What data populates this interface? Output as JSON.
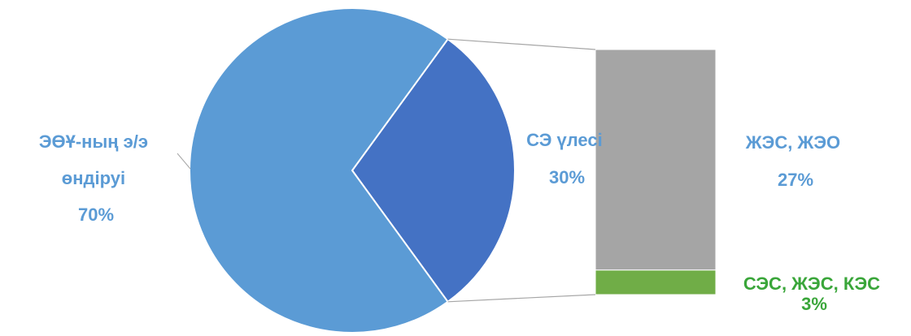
{
  "chart_data": {
    "type": "pie",
    "subtype": "pie-of-pie (bar of pie)",
    "title": "",
    "slices": [
      {
        "label_lines": [
          "ЭӨҰ-ның э/э",
          "өндіруі"
        ],
        "value": 70,
        "value_label": "70%",
        "color": "#5b9bd5",
        "label_color": "#5b9bd5"
      },
      {
        "label_lines": [
          "СЭ үлесі"
        ],
        "value": 30,
        "value_label": "30%",
        "color": "#4472c4",
        "label_color": "#5b9bd5",
        "exploded_into_bar": true
      }
    ],
    "bar_breakdown": [
      {
        "label": "ЖЭС, ЖЭО",
        "value": 27,
        "value_label": "27%",
        "color": "#a5a5a5",
        "label_color": "#5b9bd5"
      },
      {
        "label": "СЭС, ЖЭС, КЭС",
        "value": 3,
        "value_label": "3%",
        "color": "#70ad47",
        "label_color": "#3aa63a"
      }
    ],
    "legend": "none"
  }
}
